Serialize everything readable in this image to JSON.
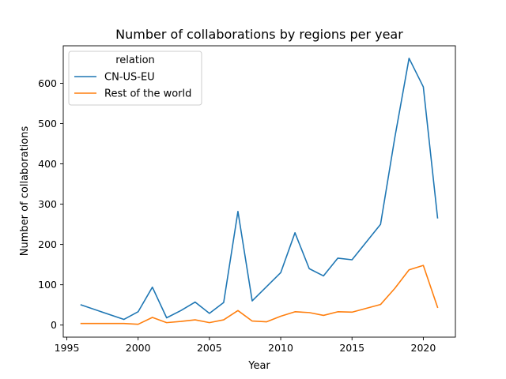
{
  "chart_data": {
    "type": "line",
    "title": "Number of collaborations by regions per year",
    "xlabel": "Year",
    "ylabel": "Number of collaborations",
    "xlim": [
      1994.75,
      2022.25
    ],
    "ylim": [
      -30,
      693
    ],
    "xticks": [
      1995,
      2000,
      2005,
      2010,
      2015,
      2020
    ],
    "yticks": [
      0,
      100,
      200,
      300,
      400,
      500,
      600
    ],
    "grid": false,
    "legend": {
      "title": "relation",
      "placement": "top-left"
    },
    "series": [
      {
        "name": "CN-US-EU",
        "color": "#1f77b4",
        "x": [
          1996,
          1999,
          2000,
          2001,
          2002,
          2003,
          2004,
          2005,
          2006,
          2007,
          2008,
          2010,
          2011,
          2012,
          2013,
          2014,
          2015,
          2017,
          2018,
          2019,
          2020,
          2021
        ],
        "y": [
          50,
          14,
          33,
          94,
          18,
          36,
          57,
          29,
          56,
          282,
          60,
          130,
          229,
          140,
          122,
          166,
          162,
          250,
          465,
          662,
          591,
          266
        ]
      },
      {
        "name": "Rest of the world",
        "color": "#ff7f0e",
        "x": [
          1996,
          1999,
          2000,
          2001,
          2002,
          2003,
          2004,
          2005,
          2006,
          2007,
          2008,
          2009,
          2010,
          2011,
          2012,
          2013,
          2014,
          2015,
          2017,
          2018,
          2019,
          2020,
          2021
        ],
        "y": [
          4,
          4,
          2,
          19,
          6,
          9,
          13,
          6,
          13,
          36,
          10,
          8,
          22,
          33,
          31,
          24,
          33,
          32,
          51,
          91,
          137,
          148,
          44
        ]
      }
    ]
  }
}
